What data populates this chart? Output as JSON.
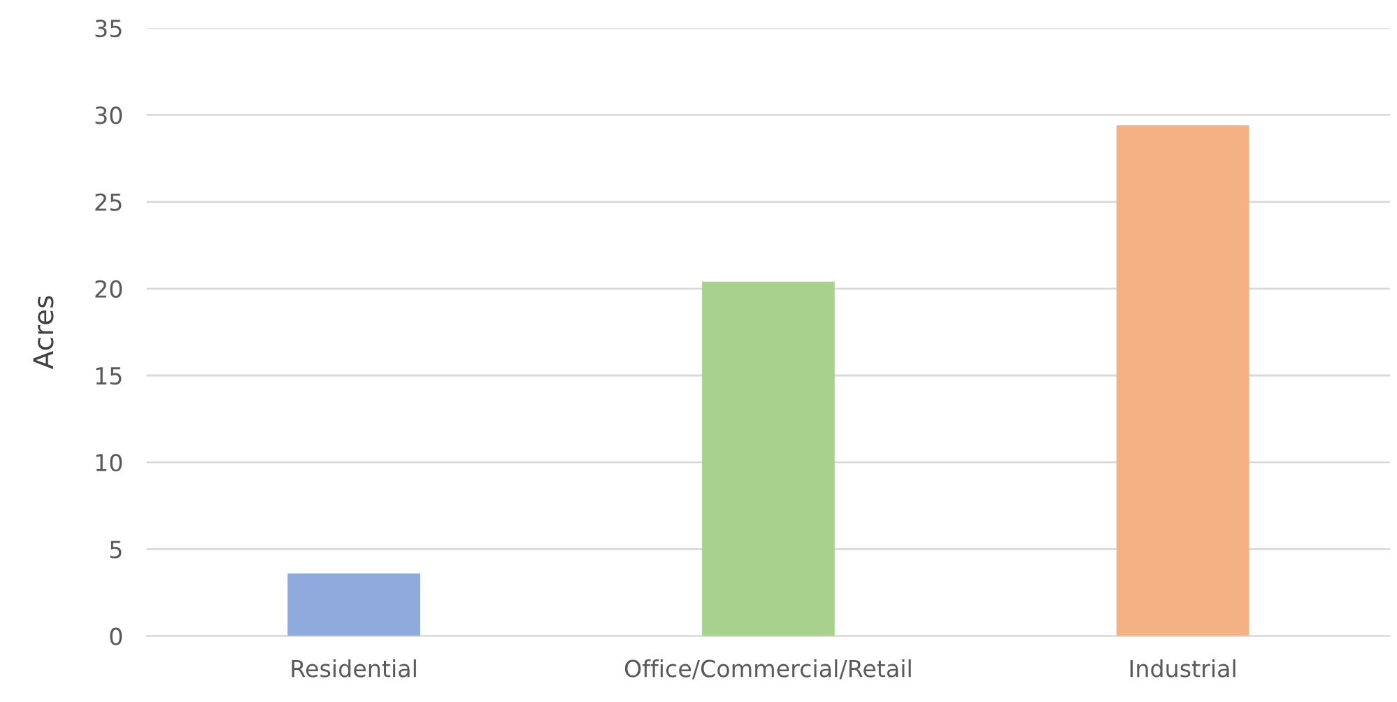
{
  "chart_data": {
    "type": "bar",
    "ylabel": "Acres",
    "categories": [
      "Residential",
      "Office/Commercial/Retail",
      "Industrial"
    ],
    "values": [
      3.6,
      20.4,
      29.4
    ],
    "colors": [
      "#8faadc",
      "#a9d18e",
      "#f4b183"
    ],
    "ylim": [
      0,
      35
    ],
    "yticks": [
      0,
      5,
      10,
      15,
      20,
      25,
      30,
      35
    ],
    "grid": "y"
  }
}
